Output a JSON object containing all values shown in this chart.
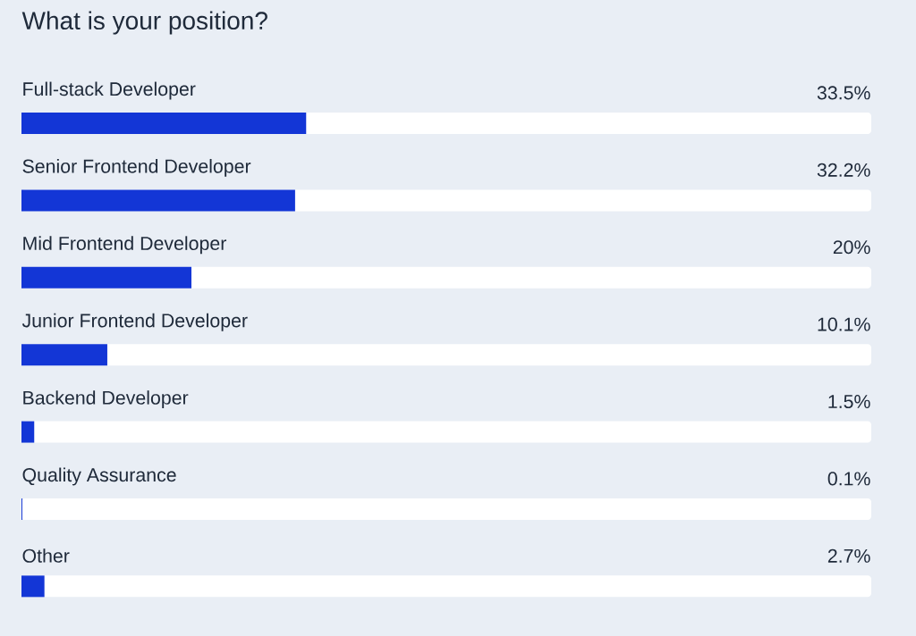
{
  "chart_data": {
    "type": "bar",
    "orientation": "horizontal",
    "title": "What is your position?",
    "categories": [
      "Full-stack Developer",
      "Senior Frontend Developer",
      "Mid Frontend Developer",
      "Junior Frontend Developer",
      "Backend Developer",
      "Quality Assurance",
      "Other"
    ],
    "values": [
      33.5,
      32.2,
      20,
      10.1,
      1.5,
      0.1,
      2.7
    ],
    "value_labels": [
      "33.5%",
      "32.2%",
      "20%",
      "10.1%",
      "1.5%",
      "0.1%",
      "2.7%"
    ],
    "color": "#1336d6",
    "xlim": [
      0,
      100
    ]
  }
}
